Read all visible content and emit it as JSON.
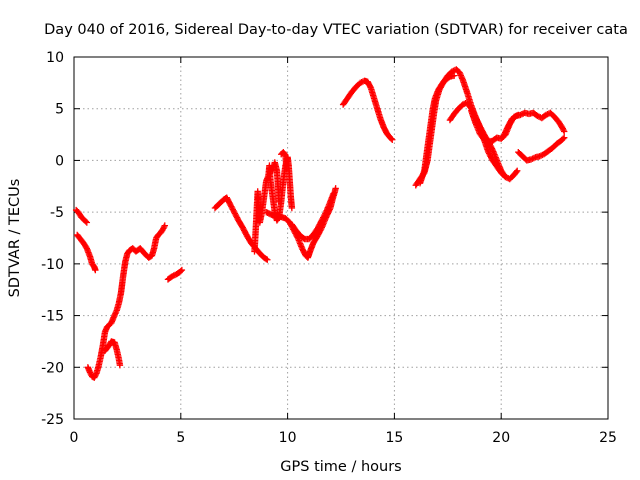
{
  "chart_data": {
    "type": "scatter",
    "title": "Day 040 of 2016, Sidereal Day-to-day VTEC variation (SDTVAR) for receiver cata",
    "xlabel": "GPS time / hours",
    "ylabel": "SDTVAR / TECUs",
    "xlim": [
      0,
      25
    ],
    "ylim": [
      -25,
      10
    ],
    "xticks": [
      0,
      5,
      10,
      15,
      20,
      25
    ],
    "yticks": [
      -25,
      -20,
      -15,
      -10,
      -5,
      0,
      5,
      10
    ],
    "grid": true,
    "marker": "+",
    "series": [
      {
        "name": "SDTVAR",
        "color": "#ff0000",
        "segments": [
          [
            [
              0.1,
              -4.8
            ],
            [
              0.2,
              -5.0
            ],
            [
              0.35,
              -5.5
            ],
            [
              0.5,
              -5.8
            ],
            [
              0.6,
              -6.0
            ]
          ],
          [
            [
              0.15,
              -7.2
            ],
            [
              0.3,
              -7.6
            ],
            [
              0.45,
              -8.0
            ],
            [
              0.6,
              -8.5
            ],
            [
              0.75,
              -9.3
            ],
            [
              0.85,
              -10.0
            ],
            [
              0.95,
              -10.3
            ],
            [
              1.0,
              -10.6
            ]
          ],
          [
            [
              0.65,
              -20.0
            ],
            [
              0.75,
              -20.5
            ],
            [
              0.85,
              -20.9
            ],
            [
              0.95,
              -21.0
            ],
            [
              1.05,
              -20.6
            ],
            [
              1.15,
              -19.9
            ],
            [
              1.25,
              -19.0
            ],
            [
              1.35,
              -17.9
            ],
            [
              1.45,
              -16.6
            ],
            [
              1.55,
              -16.1
            ],
            [
              1.65,
              -15.9
            ],
            [
              1.75,
              -15.7
            ],
            [
              1.85,
              -15.2
            ],
            [
              2.0,
              -14.5
            ],
            [
              2.1,
              -13.8
            ],
            [
              2.2,
              -12.8
            ],
            [
              2.3,
              -11.2
            ],
            [
              2.4,
              -9.8
            ],
            [
              2.5,
              -9.0
            ],
            [
              2.6,
              -8.7
            ],
            [
              2.75,
              -8.5
            ],
            [
              2.9,
              -8.8
            ],
            [
              3.1,
              -8.5
            ],
            [
              3.3,
              -9.0
            ],
            [
              3.5,
              -9.4
            ],
            [
              3.65,
              -9.2
            ],
            [
              3.75,
              -8.5
            ],
            [
              3.85,
              -7.5
            ],
            [
              3.95,
              -7.2
            ],
            [
              4.05,
              -7.0
            ],
            [
              4.15,
              -6.7
            ],
            [
              4.25,
              -6.3
            ]
          ],
          [
            [
              1.45,
              -18.4
            ],
            [
              1.6,
              -18.0
            ],
            [
              1.75,
              -17.5
            ],
            [
              1.9,
              -17.6
            ],
            [
              2.0,
              -18.3
            ],
            [
              2.1,
              -19.2
            ],
            [
              2.15,
              -19.8
            ]
          ],
          [
            [
              4.4,
              -11.5
            ],
            [
              4.6,
              -11.2
            ],
            [
              4.8,
              -11.0
            ],
            [
              4.95,
              -10.8
            ],
            [
              5.05,
              -10.6
            ]
          ],
          [
            [
              6.6,
              -4.6
            ],
            [
              6.8,
              -4.2
            ],
            [
              7.0,
              -3.8
            ],
            [
              7.15,
              -3.6
            ],
            [
              7.3,
              -4.2
            ],
            [
              7.5,
              -5.0
            ],
            [
              7.7,
              -5.8
            ],
            [
              7.9,
              -6.5
            ],
            [
              8.1,
              -7.3
            ],
            [
              8.3,
              -8.0
            ],
            [
              8.5,
              -8.5
            ],
            [
              8.7,
              -9.0
            ],
            [
              8.9,
              -9.4
            ],
            [
              9.05,
              -9.6
            ]
          ],
          [
            [
              8.45,
              -8.8
            ],
            [
              8.5,
              -7.0
            ],
            [
              8.55,
              -5.0
            ],
            [
              8.6,
              -3.0
            ],
            [
              8.65,
              -4.5
            ],
            [
              8.7,
              -6.0
            ],
            [
              8.8,
              -5.0
            ],
            [
              8.9,
              -3.5
            ],
            [
              9.0,
              -2.0
            ],
            [
              9.1,
              -1.5
            ],
            [
              9.15,
              -0.5
            ],
            [
              9.2,
              -2.0
            ],
            [
              9.3,
              -3.5
            ],
            [
              9.4,
              -5.0
            ],
            [
              9.5,
              -5.8
            ],
            [
              9.6,
              -5.5
            ],
            [
              9.7,
              -4.0
            ],
            [
              9.8,
              -2.0
            ],
            [
              9.9,
              -0.5
            ],
            [
              10.0,
              0.3
            ],
            [
              10.05,
              -0.5
            ],
            [
              10.1,
              -2.0
            ],
            [
              10.15,
              -3.5
            ],
            [
              10.2,
              -4.6
            ]
          ],
          [
            [
              9.3,
              -1.0
            ],
            [
              9.4,
              -0.2
            ],
            [
              9.5,
              -1.0
            ],
            [
              9.55,
              -2.5
            ],
            [
              9.6,
              -4.0
            ]
          ],
          [
            [
              9.7,
              0.6
            ],
            [
              9.8,
              0.8
            ],
            [
              9.9,
              0.5
            ],
            [
              9.95,
              -0.8
            ]
          ],
          [
            [
              9.0,
              -5.0
            ],
            [
              9.3,
              -5.3
            ],
            [
              9.6,
              -5.4
            ],
            [
              9.9,
              -5.6
            ],
            [
              10.1,
              -6.0
            ],
            [
              10.3,
              -6.8
            ],
            [
              10.5,
              -7.6
            ],
            [
              10.7,
              -8.6
            ],
            [
              10.85,
              -9.2
            ],
            [
              10.95,
              -9.4
            ],
            [
              11.05,
              -8.8
            ],
            [
              11.2,
              -8.0
            ],
            [
              11.4,
              -7.3
            ],
            [
              11.6,
              -6.5
            ],
            [
              11.8,
              -5.5
            ],
            [
              12.0,
              -4.6
            ],
            [
              12.1,
              -3.8
            ],
            [
              12.2,
              -3.1
            ],
            [
              12.25,
              -2.7
            ]
          ],
          [
            [
              10.2,
              -6.2
            ],
            [
              10.4,
              -6.8
            ],
            [
              10.6,
              -7.3
            ],
            [
              10.8,
              -7.6
            ],
            [
              11.0,
              -7.6
            ],
            [
              11.2,
              -7.2
            ],
            [
              11.4,
              -6.6
            ],
            [
              11.6,
              -5.8
            ],
            [
              11.8,
              -5.0
            ],
            [
              12.0,
              -4.0
            ],
            [
              12.15,
              -3.2
            ]
          ],
          [
            [
              12.6,
              5.4
            ],
            [
              12.8,
              6.0
            ],
            [
              13.0,
              6.6
            ],
            [
              13.2,
              7.1
            ],
            [
              13.4,
              7.5
            ],
            [
              13.6,
              7.7
            ],
            [
              13.75,
              7.6
            ],
            [
              13.9,
              7.0
            ],
            [
              14.05,
              6.0
            ],
            [
              14.2,
              5.0
            ],
            [
              14.35,
              4.0
            ],
            [
              14.5,
              3.2
            ],
            [
              14.65,
              2.6
            ],
            [
              14.8,
              2.2
            ],
            [
              14.9,
              2.0
            ]
          ],
          [
            [
              16.0,
              -2.4
            ],
            [
              16.2,
              -1.8
            ],
            [
              16.4,
              -1.2
            ],
            [
              16.55,
              0.0
            ],
            [
              16.65,
              1.5
            ],
            [
              16.75,
              3.0
            ],
            [
              16.85,
              4.5
            ],
            [
              16.95,
              5.8
            ],
            [
              17.1,
              6.8
            ],
            [
              17.3,
              7.6
            ],
            [
              17.5,
              8.2
            ],
            [
              17.7,
              8.6
            ],
            [
              17.9,
              8.8
            ],
            [
              18.05,
              8.5
            ],
            [
              18.2,
              7.8
            ],
            [
              18.4,
              6.6
            ],
            [
              18.6,
              5.3
            ],
            [
              18.8,
              4.2
            ],
            [
              19.0,
              3.3
            ],
            [
              19.2,
              2.5
            ],
            [
              19.4,
              1.8
            ],
            [
              19.6,
              1.0
            ],
            [
              19.8,
              0.0
            ],
            [
              20.0,
              -1.0
            ],
            [
              20.2,
              -1.6
            ],
            [
              20.4,
              -1.8
            ],
            [
              20.6,
              -1.4
            ],
            [
              20.75,
              -1.0
            ]
          ],
          [
            [
              16.2,
              -2.2
            ],
            [
              16.4,
              -1.0
            ],
            [
              16.5,
              0.5
            ],
            [
              16.6,
              2.0
            ],
            [
              16.7,
              3.5
            ],
            [
              16.8,
              5.0
            ],
            [
              16.9,
              6.0
            ],
            [
              17.05,
              6.8
            ],
            [
              17.2,
              7.3
            ],
            [
              17.4,
              7.8
            ],
            [
              17.6,
              8.1
            ],
            [
              17.8,
              8.2
            ]
          ],
          [
            [
              17.6,
              3.9
            ],
            [
              17.8,
              4.5
            ],
            [
              18.0,
              5.0
            ],
            [
              18.2,
              5.4
            ],
            [
              18.4,
              5.6
            ],
            [
              18.6,
              5.0
            ],
            [
              18.8,
              4.2
            ],
            [
              19.0,
              3.2
            ],
            [
              19.2,
              2.0
            ],
            [
              19.4,
              0.8
            ],
            [
              19.6,
              0.0
            ],
            [
              19.8,
              -0.6
            ],
            [
              20.0,
              -1.2
            ],
            [
              20.2,
              -1.6
            ]
          ],
          [
            [
              18.6,
              4.8
            ],
            [
              18.8,
              3.6
            ],
            [
              19.0,
              2.6
            ],
            [
              19.2,
              2.0
            ],
            [
              19.4,
              1.8
            ],
            [
              19.6,
              1.9
            ],
            [
              19.8,
              2.2
            ],
            [
              20.0,
              2.1
            ],
            [
              20.2,
              2.5
            ],
            [
              20.4,
              3.5
            ],
            [
              20.6,
              4.2
            ],
            [
              20.8,
              4.4
            ]
          ],
          [
            [
              20.1,
              2.3
            ],
            [
              20.3,
              3.2
            ],
            [
              20.5,
              4.0
            ],
            [
              20.7,
              4.3
            ],
            [
              20.9,
              4.4
            ],
            [
              21.1,
              4.6
            ],
            [
              21.3,
              4.5
            ],
            [
              21.5,
              4.6
            ],
            [
              21.7,
              4.3
            ],
            [
              21.9,
              4.1
            ],
            [
              22.1,
              4.4
            ],
            [
              22.3,
              4.6
            ],
            [
              22.5,
              4.2
            ],
            [
              22.7,
              3.7
            ],
            [
              22.85,
              3.2
            ],
            [
              22.95,
              2.8
            ]
          ],
          [
            [
              20.8,
              0.8
            ],
            [
              21.0,
              0.4
            ],
            [
              21.2,
              0.0
            ],
            [
              21.4,
              0.1
            ],
            [
              21.6,
              0.3
            ],
            [
              21.8,
              0.4
            ],
            [
              22.0,
              0.6
            ],
            [
              22.2,
              0.9
            ],
            [
              22.4,
              1.2
            ],
            [
              22.6,
              1.6
            ],
            [
              22.8,
              1.9
            ],
            [
              22.95,
              2.2
            ]
          ]
        ]
      }
    ]
  }
}
